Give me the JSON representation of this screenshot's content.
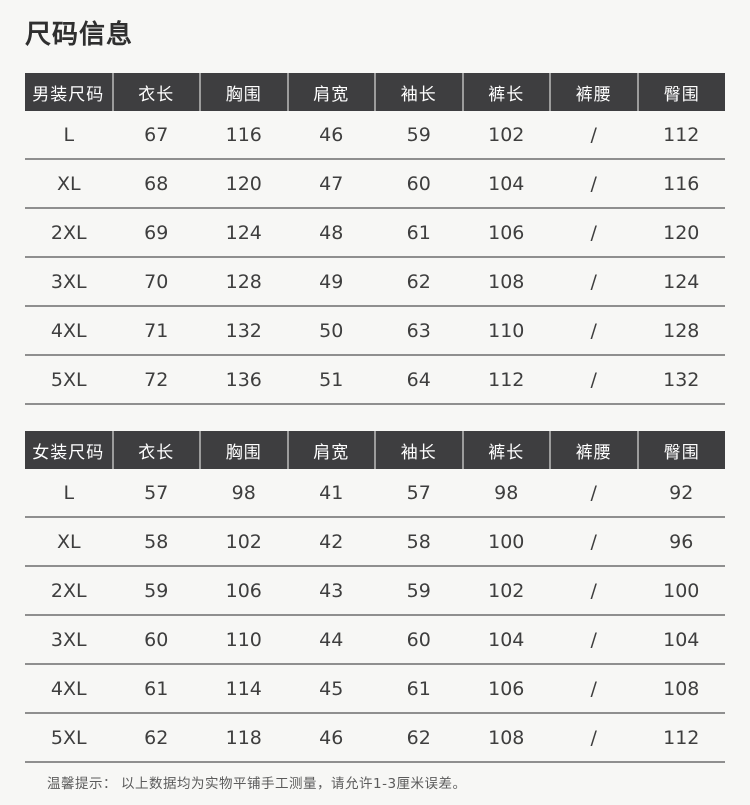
{
  "page": {
    "title": "尺码信息",
    "note_prefix": "温馨提示：",
    "note_text": "以上数据均为实物平铺手工测量，请允许1-3厘米误差。"
  },
  "colors": {
    "background": "#f7f7f5",
    "header_bg": "#3e3e40",
    "header_text": "#ffffff",
    "header_divider": "#9c9c9c",
    "row_line": "#8f8f8f",
    "cell_text": "#3e3e3e"
  },
  "men_table": {
    "headers": [
      "男装尺码",
      "衣长",
      "胸围",
      "肩宽",
      "袖长",
      "裤长",
      "裤腰",
      "臀围"
    ],
    "rows": [
      [
        "L",
        "67",
        "116",
        "46",
        "59",
        "102",
        "/",
        "112"
      ],
      [
        "XL",
        "68",
        "120",
        "47",
        "60",
        "104",
        "/",
        "116"
      ],
      [
        "2XL",
        "69",
        "124",
        "48",
        "61",
        "106",
        "/",
        "120"
      ],
      [
        "3XL",
        "70",
        "128",
        "49",
        "62",
        "108",
        "/",
        "124"
      ],
      [
        "4XL",
        "71",
        "132",
        "50",
        "63",
        "110",
        "/",
        "128"
      ],
      [
        "5XL",
        "72",
        "136",
        "51",
        "64",
        "112",
        "/",
        "132"
      ]
    ]
  },
  "women_table": {
    "headers": [
      "女装尺码",
      "衣长",
      "胸围",
      "肩宽",
      "袖长",
      "裤长",
      "裤腰",
      "臀围"
    ],
    "rows": [
      [
        "L",
        "57",
        "98",
        "41",
        "57",
        "98",
        "/",
        "92"
      ],
      [
        "XL",
        "58",
        "102",
        "42",
        "58",
        "100",
        "/",
        "96"
      ],
      [
        "2XL",
        "59",
        "106",
        "43",
        "59",
        "102",
        "/",
        "100"
      ],
      [
        "3XL",
        "60",
        "110",
        "44",
        "60",
        "104",
        "/",
        "104"
      ],
      [
        "4XL",
        "61",
        "114",
        "45",
        "61",
        "106",
        "/",
        "108"
      ],
      [
        "5XL",
        "62",
        "118",
        "46",
        "62",
        "108",
        "/",
        "112"
      ]
    ]
  }
}
